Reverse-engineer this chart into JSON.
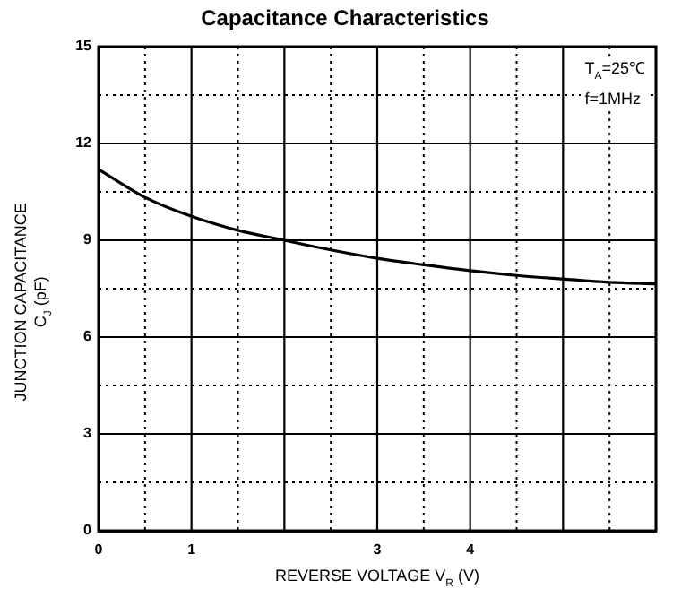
{
  "chart_data": {
    "type": "line",
    "title": "Capacitance Characteristics",
    "xlabel": "REVERSE VOLTAGE   V$_{R}$   (V)",
    "ylabel": "JUNCTION CAPACITANCE\nC$_{J}$   (pF)",
    "x": [
      0,
      0.5,
      1,
      1.5,
      2,
      2.5,
      3,
      3.5,
      4,
      4.5,
      5,
      5.5,
      6
    ],
    "series": [
      {
        "color": "#000000",
        "values": [
          11.2,
          10.33,
          9.74,
          9.31,
          9.0,
          8.7,
          8.44,
          8.24,
          8.06,
          7.91,
          7.8,
          7.7,
          7.65
        ]
      }
    ],
    "xlim": [
      0,
      6
    ],
    "xticks": [
      0,
      {
        "value": 0.5,
        "label": null
      },
      1,
      {
        "value": 1.5,
        "label": null
      },
      {
        "value": 2,
        "label": null
      },
      {
        "value": 2.5,
        "label": null
      },
      3,
      {
        "value": 3.5,
        "label": null
      },
      4,
      {
        "value": 4.5,
        "label": null
      },
      {
        "value": 5,
        "label": null
      },
      {
        "value": 5.5,
        "label": null
      },
      {
        "value": 6,
        "label": null
      }
    ],
    "ylim": [
      0,
      15
    ],
    "yticks": [
      0,
      {
        "value": 1.5,
        "label": null
      },
      3,
      {
        "value": 4.5,
        "label": null
      },
      6,
      {
        "value": 7.5,
        "label": null
      },
      9,
      {
        "value": 10.5,
        "label": null
      },
      12,
      {
        "value": 13.5,
        "label": null
      },
      15
    ],
    "annotations": [
      "T$_{A}$=25℃",
      "f=1MHz"
    ],
    "grid": true,
    "legend": false,
    "marker": "none",
    "line_style": "solid"
  }
}
